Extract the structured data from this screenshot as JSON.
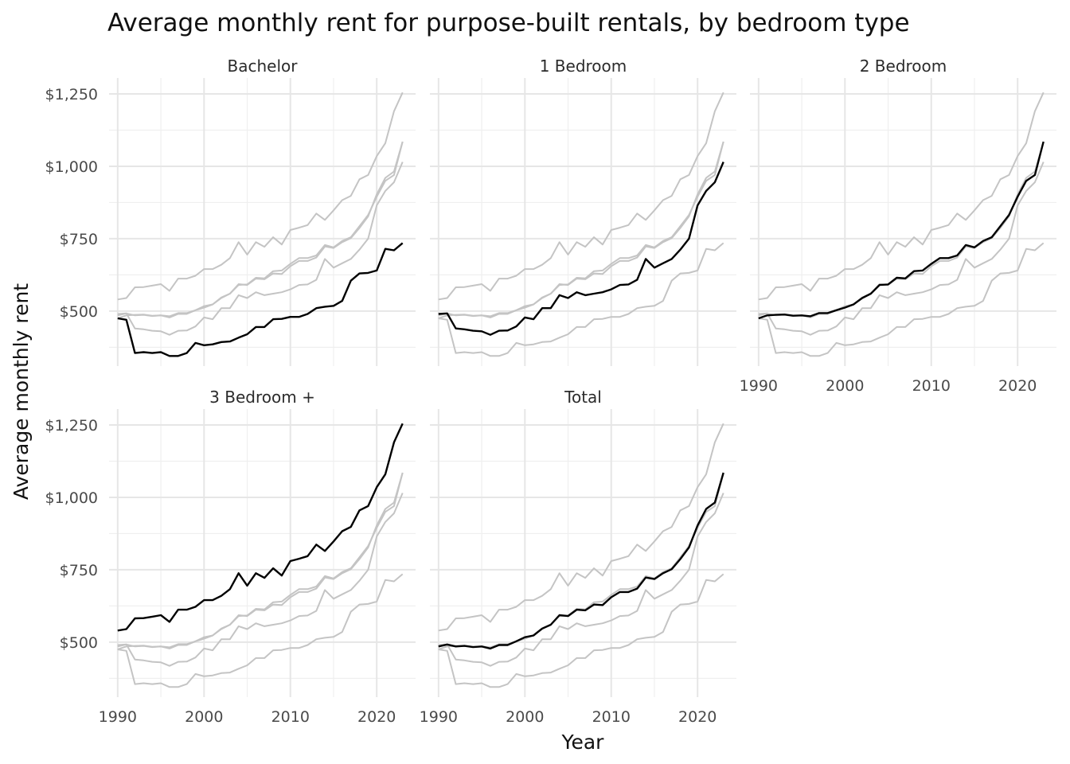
{
  "chart_data": {
    "type": "line",
    "title": "Average monthly rent for purpose-built rentals, by bedroom type",
    "xlabel": "Year",
    "ylabel": "Average monthly rent",
    "xlim": [
      1989,
      2024.5
    ],
    "ylim": [
      310,
      1305
    ],
    "x_ticks": [
      1990,
      2000,
      2010,
      2020
    ],
    "x_tick_labels": [
      "1990",
      "2000",
      "2010",
      "2020"
    ],
    "y_ticks": [
      500,
      750,
      1000,
      1250
    ],
    "y_tick_labels": [
      "$500",
      "$750",
      "$1,000",
      "$1,250"
    ],
    "y_minor_ticks": [
      375,
      625,
      875,
      1125
    ],
    "grid": true,
    "facets": [
      "Bachelor",
      "1 Bedroom",
      "2 Bedroom",
      "3 Bedroom +",
      "Total"
    ],
    "x": [
      1990,
      1991,
      1992,
      1993,
      1994,
      1995,
      1996,
      1997,
      1998,
      1999,
      2000,
      2001,
      2002,
      2003,
      2004,
      2005,
      2006,
      2007,
      2008,
      2009,
      2010,
      2011,
      2012,
      2013,
      2014,
      2015,
      2016,
      2017,
      2018,
      2019,
      2020,
      2021,
      2022,
      2023
    ],
    "series": [
      {
        "name": "Bachelor",
        "values": [
          475,
          470,
          355,
          358,
          355,
          358,
          345,
          345,
          355,
          390,
          382,
          385,
          393,
          395,
          408,
          420,
          445,
          445,
          472,
          473,
          480,
          480,
          490,
          510,
          515,
          518,
          535,
          605,
          630,
          632,
          640,
          715,
          710,
          735
        ]
      },
      {
        "name": "1 Bedroom",
        "values": [
          490,
          492,
          440,
          437,
          432,
          430,
          418,
          432,
          433,
          447,
          478,
          472,
          510,
          510,
          555,
          545,
          565,
          555,
          560,
          565,
          575,
          590,
          592,
          608,
          680,
          650,
          665,
          680,
          712,
          750,
          865,
          915,
          945,
          1015
        ]
      },
      {
        "name": "2 Bedroom",
        "values": [
          475,
          485,
          487,
          488,
          484,
          485,
          482,
          493,
          493,
          503,
          512,
          523,
          545,
          560,
          590,
          592,
          615,
          613,
          638,
          640,
          663,
          683,
          683,
          692,
          728,
          720,
          742,
          755,
          793,
          832,
          895,
          950,
          970,
          1085
        ]
      },
      {
        "name": "3 Bedroom +",
        "values": [
          540,
          545,
          582,
          583,
          588,
          593,
          570,
          612,
          612,
          622,
          645,
          645,
          660,
          683,
          738,
          695,
          738,
          722,
          755,
          730,
          780,
          788,
          797,
          837,
          815,
          848,
          883,
          898,
          955,
          970,
          1035,
          1080,
          1190,
          1255
        ]
      },
      {
        "name": "Total",
        "values": [
          485,
          492,
          485,
          487,
          483,
          485,
          478,
          490,
          490,
          503,
          517,
          523,
          547,
          560,
          593,
          590,
          612,
          610,
          630,
          628,
          655,
          673,
          673,
          685,
          723,
          718,
          738,
          752,
          787,
          827,
          903,
          960,
          982,
          1085
        ]
      }
    ]
  }
}
